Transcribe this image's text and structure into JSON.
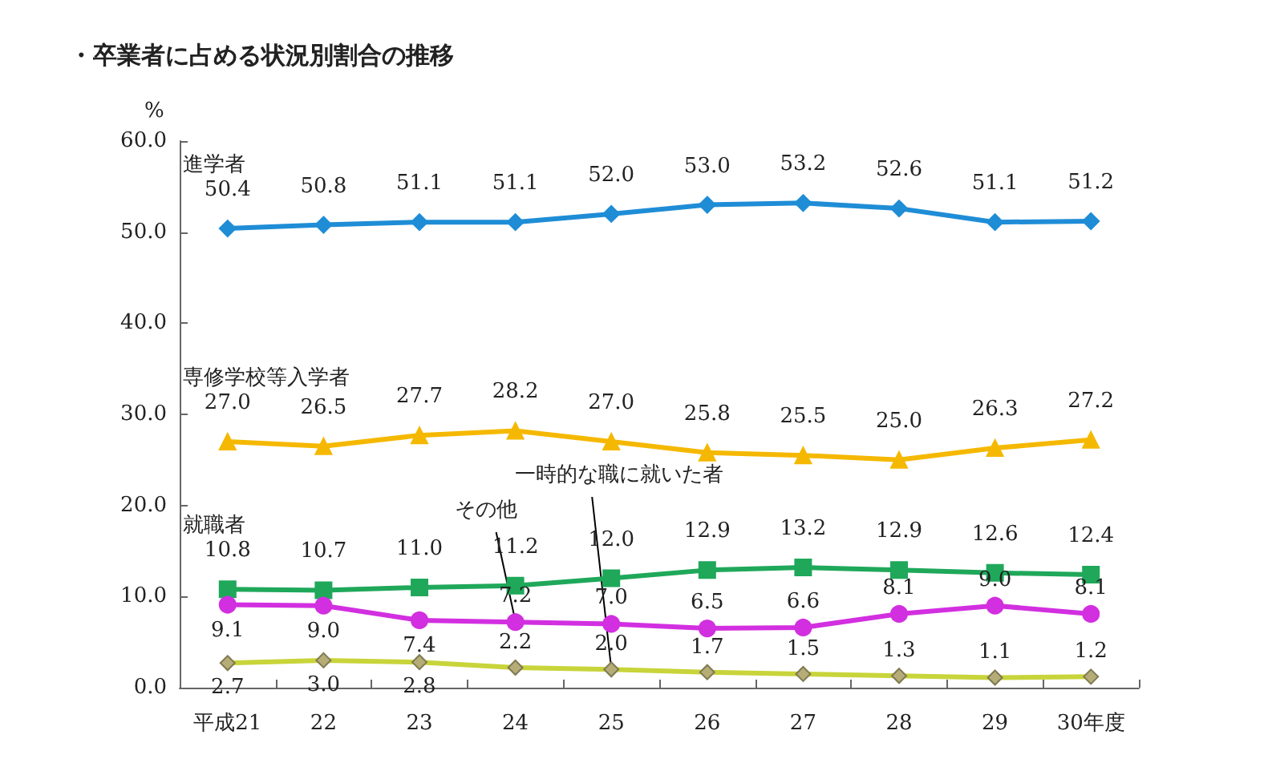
{
  "chart_data": {
    "type": "line",
    "title": "・卒業者に占める状況別割合の推移",
    "ylabel": "%",
    "categories": [
      "平成21",
      "22",
      "23",
      "24",
      "25",
      "26",
      "27",
      "28",
      "29",
      "30年度"
    ],
    "series": [
      {
        "name": "進学者",
        "color": "#1f8dd6",
        "marker": "diamond",
        "values": [
          50.4,
          50.8,
          51.1,
          51.1,
          52.0,
          53.0,
          53.2,
          52.6,
          51.1,
          51.2
        ],
        "value_labels": [
          "50.4",
          "50.8",
          "51.1",
          "51.1",
          "52.0",
          "53.0",
          "53.2",
          "52.6",
          "51.1",
          "51.2"
        ]
      },
      {
        "name": "専修学校等入学者",
        "color": "#f5b800",
        "marker": "triangle",
        "values": [
          27.0,
          26.5,
          27.7,
          28.2,
          27.0,
          25.8,
          25.5,
          25.0,
          26.3,
          27.2
        ],
        "value_labels": [
          "27.0",
          "26.5",
          "27.7",
          "28.2",
          "27.0",
          "25.8",
          "25.5",
          "25.0",
          "26.3",
          "27.2"
        ]
      },
      {
        "name": "就職者",
        "color": "#1fa85a",
        "marker": "square",
        "values": [
          10.8,
          10.7,
          11.0,
          11.2,
          12.0,
          12.9,
          13.2,
          12.9,
          12.6,
          12.4
        ],
        "value_labels": [
          "10.8",
          "10.7",
          "11.0",
          "11.2",
          "12.0",
          "12.9",
          "13.2",
          "12.9",
          "12.6",
          "12.4"
        ]
      },
      {
        "name": "その他",
        "color": "#d22fe0",
        "marker": "circle",
        "values": [
          9.1,
          9.0,
          7.4,
          7.2,
          7.0,
          6.5,
          6.6,
          8.1,
          9.0,
          8.1
        ],
        "value_labels": [
          "9.1",
          "9.0",
          "7.4",
          "7.2",
          "7.0",
          "6.5",
          "6.6",
          "8.1",
          "9.0",
          "8.1"
        ]
      },
      {
        "name": "一時的な職に就いた者",
        "color": "#c8d43a",
        "marker": "diamond",
        "values": [
          2.7,
          3.0,
          2.8,
          2.2,
          2.0,
          1.7,
          1.5,
          1.3,
          1.1,
          1.2
        ],
        "value_labels": [
          "2.7",
          "3.0",
          "2.8",
          "2.2",
          "2.0",
          "1.7",
          "1.5",
          "1.3",
          "1.1",
          "1.2"
        ]
      }
    ],
    "ylim": [
      0,
      60
    ],
    "yticks": [
      {
        "value": 0,
        "label": "0.0"
      },
      {
        "value": 10,
        "label": "10.0"
      },
      {
        "value": 20,
        "label": "20.0"
      },
      {
        "value": 30,
        "label": "30.0"
      },
      {
        "value": 40,
        "label": "40.0"
      },
      {
        "value": 50,
        "label": "50.0"
      },
      {
        "value": 60,
        "label": "60.0"
      }
    ],
    "grid": false,
    "legend": false,
    "line_style": "solid"
  }
}
